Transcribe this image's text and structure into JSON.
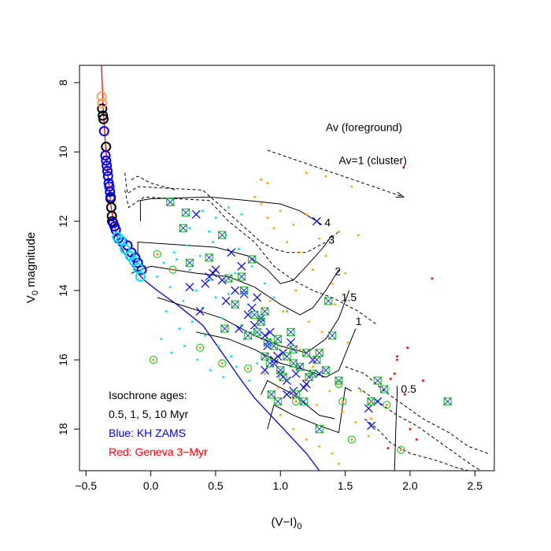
{
  "chart_data": {
    "type": "scatter",
    "xlabel": "(V−I)",
    "xlabel_sub": "0",
    "ylabel": "V",
    "ylabel_sub": "0",
    "ylabel_rest": " magnitude",
    "xlim": [
      -0.55,
      2.65
    ],
    "ylim": [
      19.2,
      7.5
    ],
    "x_ticks": [
      -0.5,
      0.0,
      0.5,
      1.0,
      1.5,
      2.0,
      2.5
    ],
    "x_tick_labels": [
      "−0.5",
      "0.0",
      "0.5",
      "1.0",
      "1.5",
      "2.0",
      "2.5"
    ],
    "y_ticks": [
      8,
      10,
      12,
      14,
      16,
      18
    ],
    "y_tick_labels": [
      "8",
      "10",
      "12",
      "14",
      "16",
      "18"
    ],
    "grid": false,
    "legend": {
      "position": "bottom-left",
      "lines": [
        {
          "text": "Isochrone ages:",
          "color": "#000000"
        },
        {
          "text": "0.5, 1, 5, 10 Myr",
          "color": "#000000"
        },
        {
          "text": "Blue: KH ZAMS",
          "color": "#0000ff"
        },
        {
          "text": "Red: Geneva 3−Myr",
          "color": "#ff0000"
        }
      ]
    },
    "annotations": {
      "av_foreground": {
        "text": "Av (foreground)",
        "x": 1.35,
        "y": 9.4
      },
      "av_cluster": {
        "text": "Av=1 (cluster)",
        "x": 1.45,
        "y": 10.35
      },
      "reddening_vector": {
        "x0": 0.9,
        "y0": 9.95,
        "x1": 1.95,
        "y1": 11.3
      }
    },
    "track_labels": [
      {
        "text": "4",
        "x": 1.34,
        "y": 12.15
      },
      {
        "text": "3",
        "x": 1.37,
        "y": 12.65
      },
      {
        "text": "2",
        "x": 1.42,
        "y": 13.55
      },
      {
        "text": "1.5",
        "x": 1.47,
        "y": 14.3
      },
      {
        "text": "1",
        "x": 1.58,
        "y": 15.0
      },
      {
        "text": "0.5",
        "x": 1.93,
        "y": 16.95
      }
    ],
    "series": [
      {
        "kind": "geneva_line",
        "color": "#ff0000",
        "x": [
          -0.38,
          -0.37,
          -0.355,
          -0.34,
          -0.325,
          -0.315,
          -0.305,
          -0.295,
          -0.285,
          -0.27,
          -0.25
        ],
        "y": [
          7.5,
          8.5,
          9.5,
          10.3,
          10.9,
          11.3,
          11.6,
          11.85,
          12.05,
          12.3,
          12.6
        ]
      },
      {
        "kind": "zams_line",
        "color": "#0000ff",
        "x": [
          -0.25,
          -0.2,
          -0.15,
          -0.1,
          -0.05,
          0.05,
          0.2,
          0.4,
          0.55,
          0.7,
          0.8,
          0.9,
          1.0,
          1.1,
          1.2,
          1.3
        ],
        "y": [
          12.6,
          12.95,
          13.25,
          13.5,
          13.7,
          14.0,
          14.4,
          15.0,
          15.8,
          16.6,
          17.1,
          17.5,
          17.9,
          18.3,
          18.7,
          19.2
        ]
      },
      {
        "kind": "isochrone_solid",
        "color": "#000000",
        "lines": [
          {
            "x": [
              -0.08,
              -0.08,
              0.0,
              0.45,
              0.75,
              1.0,
              1.15,
              1.28,
              1.32
            ],
            "y": [
              12.0,
              11.4,
              11.35,
              11.3,
              11.4,
              11.5,
              11.7,
              12.0,
              12.1
            ]
          },
          {
            "x": [
              -0.1,
              -0.1,
              0.5,
              0.75,
              0.9,
              1.0,
              1.1,
              1.2,
              1.32,
              1.4
            ],
            "y": [
              13.0,
              12.6,
              12.75,
              13.0,
              13.4,
              13.8,
              13.7,
              13.3,
              12.8,
              12.4
            ]
          },
          {
            "x": [
              -0.15,
              0.0,
              0.35,
              0.6,
              0.8,
              1.0,
              1.15,
              1.25,
              1.35,
              1.45
            ],
            "y": [
              13.5,
              13.3,
              13.5,
              13.6,
              13.9,
              14.4,
              14.7,
              14.5,
              14.0,
              13.4
            ]
          },
          {
            "x": [
              0.05,
              0.3,
              0.55,
              0.8,
              1.0,
              1.2,
              1.35,
              1.45,
              1.53
            ],
            "y": [
              14.2,
              14.5,
              14.8,
              15.3,
              15.6,
              15.8,
              15.4,
              14.8,
              14.0
            ]
          },
          {
            "x": [
              0.35,
              0.6,
              0.8,
              1.0,
              1.2,
              1.35,
              1.45,
              1.58
            ],
            "y": [
              15.2,
              15.4,
              15.7,
              16.1,
              16.3,
              16.5,
              16.3,
              15.1
            ]
          },
          {
            "x": [
              0.9,
              0.95,
              1.1,
              1.3,
              1.45,
              1.5,
              1.55
            ],
            "y": [
              18.0,
              17.3,
              17.6,
              17.9,
              18.1,
              16.8,
              16.9
            ]
          },
          {
            "x": [
              0.85,
              0.9,
              1.1,
              1.3,
              1.42
            ],
            "y": [
              17.0,
              16.6,
              17.0,
              17.6,
              17.7
            ]
          },
          {
            "x": [
              1.88,
              1.89,
              1.9,
              1.9
            ],
            "y": [
              19.2,
              18.0,
              17.0,
              16.75
            ]
          }
        ]
      },
      {
        "kind": "isochrone_dashed",
        "color": "#000000",
        "lines": [
          {
            "x": [
              -0.2,
              -0.18,
              -0.1,
              0.4,
              0.55,
              0.7,
              0.85,
              0.95,
              1.05,
              1.2,
              1.35,
              1.45
            ],
            "y": [
              10.6,
              11.2,
              11.0,
              11.1,
              11.6,
              12.1,
              12.6,
              12.8,
              12.9,
              12.9,
              12.6,
              12.3
            ]
          },
          {
            "x": [
              -0.2,
              -0.17,
              -0.05,
              0.45,
              0.6,
              0.8,
              0.95,
              1.1,
              1.25,
              1.4,
              1.6,
              1.75
            ],
            "y": [
              11.1,
              11.6,
              11.3,
              11.4,
              12.0,
              12.6,
              13.3,
              13.7,
              14.0,
              14.2,
              14.6,
              15.0
            ]
          },
          {
            "x": [
              1.5,
              1.65,
              1.8,
              1.95,
              2.1,
              2.3,
              2.45,
              2.6
            ],
            "y": [
              16.2,
              16.4,
              16.9,
              17.3,
              17.7,
              18.1,
              18.5,
              18.7
            ]
          },
          {
            "x": [
              1.6,
              1.75,
              1.9,
              2.05,
              2.2,
              2.35,
              2.5,
              2.55
            ],
            "y": [
              16.8,
              17.2,
              17.6,
              17.9,
              18.3,
              18.7,
              19.1,
              19.2
            ]
          },
          {
            "x": [
              1.65,
              1.75,
              1.85,
              2.0,
              2.2,
              2.35,
              2.45
            ],
            "y": [
              17.7,
              18.0,
              18.4,
              18.7,
              18.9,
              19.1,
              19.2
            ]
          },
          {
            "x": [
              -0.15,
              -0.1,
              0.0,
              0.1,
              0.2
            ],
            "y": [
              10.8,
              10.7,
              10.9,
              11.0,
              11.1
            ]
          }
        ]
      },
      {
        "kind": "bright_circles_black",
        "color": "#000000",
        "x": [
          -0.375,
          -0.37,
          -0.365,
          -0.345,
          -0.31,
          -0.305,
          -0.3,
          -0.298
        ],
        "y": [
          8.75,
          8.95,
          9.05,
          9.85,
          11.35,
          11.6,
          11.85,
          12.0
        ]
      },
      {
        "kind": "bright_circles_orange",
        "color": "#f4a460",
        "x": [
          -0.38,
          -0.375
        ],
        "y": [
          8.4,
          8.6
        ]
      },
      {
        "kind": "bright_circles_blue",
        "color": "#0000ff",
        "x": [
          -0.36,
          -0.35,
          -0.345,
          -0.34,
          -0.335,
          -0.33,
          -0.325,
          -0.32,
          -0.315,
          -0.31,
          -0.29,
          -0.28,
          -0.27,
          -0.25,
          -0.22,
          -0.18,
          -0.15,
          -0.12,
          -0.1,
          -0.07
        ],
        "y": [
          9.4,
          10.1,
          10.25,
          10.4,
          10.55,
          10.7,
          10.9,
          11.0,
          11.15,
          11.3,
          12.05,
          12.15,
          12.25,
          12.5,
          12.6,
          12.7,
          12.9,
          13.05,
          13.2,
          13.4
        ]
      },
      {
        "kind": "bright_circles_cyan",
        "color": "#00e5ee",
        "x": [
          -0.26,
          -0.23,
          -0.2,
          -0.16,
          -0.13,
          -0.1,
          -0.08
        ],
        "y": [
          12.45,
          12.55,
          12.8,
          13.0,
          13.15,
          13.35,
          13.6
        ]
      },
      {
        "kind": "cyan_dots",
        "color": "#00e5ee",
        "x": [
          0.05,
          0.1,
          0.15,
          0.2,
          0.25,
          0.3,
          0.35,
          0.4,
          0.45,
          0.5,
          0.55,
          0.6,
          0.65,
          0.7,
          0.75,
          0.8,
          0.85,
          0.9,
          0.12,
          0.22,
          0.32,
          0.42,
          0.52,
          0.62,
          0.72,
          0.82,
          0.18,
          0.28,
          0.38,
          0.48,
          0.58,
          0.68,
          0.78,
          0.88,
          0.95,
          1.05,
          0.08,
          0.16,
          0.26,
          0.36,
          0.46,
          0.56,
          0.66,
          0.76,
          0.4,
          0.5,
          0.6,
          0.7,
          0.3,
          0.45
        ],
        "y": [
          13.6,
          13.2,
          13.9,
          13.1,
          14.3,
          13.4,
          14.0,
          14.5,
          13.7,
          14.2,
          14.8,
          14.1,
          13.5,
          15.0,
          14.4,
          15.2,
          14.7,
          15.5,
          14.6,
          15.1,
          14.9,
          15.3,
          15.6,
          15.9,
          15.4,
          16.1,
          12.9,
          12.7,
          13.0,
          12.6,
          12.4,
          12.8,
          13.3,
          13.8,
          14.2,
          14.6,
          15.4,
          15.8,
          15.6,
          16.0,
          16.3,
          16.5,
          16.2,
          16.6,
          11.7,
          11.9,
          11.6,
          11.8,
          12.2,
          12.3
        ]
      },
      {
        "kind": "orange_dots",
        "color": "#ffa500",
        "x": [
          0.85,
          0.9,
          0.95,
          1.0,
          1.05,
          1.1,
          1.15,
          1.2,
          1.25,
          1.3,
          1.35,
          1.4,
          1.45,
          1.5,
          1.55,
          1.6,
          0.92,
          1.02,
          1.12,
          1.22,
          1.32,
          1.42,
          1.52,
          0.88,
          0.98,
          1.08,
          1.18,
          1.28,
          1.38,
          1.48,
          1.58,
          1.68,
          1.0,
          1.1,
          1.2,
          1.3,
          1.4,
          1.45,
          0.95,
          1.05,
          1.15,
          1.25,
          0.9,
          0.8,
          0.85,
          1.35,
          1.55,
          1.62,
          1.7,
          1.2
        ],
        "y": [
          11.5,
          11.9,
          12.2,
          11.7,
          12.6,
          12.1,
          12.9,
          11.8,
          13.4,
          12.5,
          13.0,
          13.8,
          12.3,
          13.5,
          14.1,
          12.4,
          14.3,
          14.6,
          14.0,
          14.9,
          15.2,
          14.4,
          15.5,
          16.4,
          16.8,
          17.1,
          16.6,
          17.3,
          16.9,
          17.5,
          17.8,
          18.2,
          17.6,
          18.0,
          18.3,
          18.5,
          18.7,
          19.0,
          15.8,
          16.0,
          15.7,
          16.2,
          10.9,
          11.3,
          10.8,
          10.7,
          11.0,
          16.9,
          17.7,
          10.6
        ]
      },
      {
        "kind": "red_dots",
        "color": "#ff0000",
        "x": [
          1.95,
          2.17,
          1.9,
          1.98,
          1.85,
          2.1,
          1.88,
          2.0,
          2.05,
          1.83,
          1.96,
          1.9
        ],
        "y": [
          10.45,
          13.65,
          15.9,
          15.65,
          16.55,
          16.6,
          16.4,
          18.0,
          18.3,
          18.55,
          17.0,
          16.0
        ]
      },
      {
        "kind": "blue_crosses",
        "color": "#0000ff",
        "x": [
          0.35,
          0.45,
          0.55,
          0.62,
          0.7,
          0.72,
          0.78,
          0.8,
          0.85,
          0.9,
          0.92,
          0.95,
          1.0,
          1.02,
          1.05,
          1.08,
          1.1,
          1.15,
          1.2,
          1.25,
          0.42,
          0.48,
          0.58,
          0.65,
          0.75,
          0.82,
          0.88,
          0.98,
          1.12,
          1.18,
          0.3,
          0.38,
          0.5,
          0.68,
          1.28,
          1.3,
          1.68,
          1.7,
          1.75,
          0.88,
          0.95,
          1.05
        ],
        "y": [
          11.8,
          13.6,
          13.7,
          12.9,
          13.3,
          14.1,
          14.5,
          15.0,
          14.8,
          15.6,
          15.2,
          16.1,
          16.4,
          15.8,
          16.6,
          15.5,
          16.9,
          16.2,
          16.7,
          16.0,
          13.8,
          13.5,
          14.3,
          14.0,
          14.7,
          14.2,
          15.3,
          15.9,
          16.4,
          16.8,
          13.9,
          14.6,
          13.4,
          15.1,
          12.0,
          16.4,
          17.4,
          17.9,
          17.2,
          16.3,
          16.0,
          17.0
        ]
      },
      {
        "kind": "green_marked",
        "color": "#32cd32",
        "x": [
          0.15,
          0.25,
          0.27,
          0.3,
          0.45,
          0.55,
          0.6,
          0.65,
          0.75,
          0.78,
          0.8,
          0.85,
          0.9,
          0.95,
          1.0,
          1.05,
          1.1,
          1.15,
          1.2,
          1.25,
          1.3,
          1.35,
          1.4,
          1.45,
          0.72,
          0.82,
          0.88,
          0.92,
          0.98,
          1.02,
          1.08,
          1.12,
          1.7,
          1.75,
          1.8,
          1.3,
          2.29,
          1.37,
          0.93,
          1.28,
          0.57,
          0.7,
          0.88,
          1.1,
          0.98,
          1.22,
          1.18
        ],
        "y": [
          11.45,
          12.2,
          11.75,
          13.2,
          13.05,
          12.4,
          13.65,
          14.4,
          15.3,
          13.1,
          14.7,
          14.9,
          15.5,
          15.6,
          16.3,
          15.9,
          15.7,
          16.2,
          15.8,
          16.4,
          15.8,
          16.3,
          15.3,
          16.6,
          14.0,
          15.2,
          15.9,
          16.1,
          15.4,
          16.5,
          15.2,
          17.0,
          17.2,
          16.6,
          16.85,
          18.0,
          17.2,
          14.3,
          17.0,
          16.0,
          15.1,
          13.6,
          14.6,
          16.1,
          17.2,
          16.5,
          17.2
        ]
      },
      {
        "kind": "green_circles",
        "color": "#32cd32",
        "x": [
          0.05,
          0.17,
          0.38,
          0.55,
          0.75,
          1.12,
          1.45,
          1.7,
          1.82,
          1.55,
          1.48,
          1.93,
          0.02
        ],
        "y": [
          12.95,
          13.4,
          15.65,
          16.1,
          16.25,
          17.2,
          16.7,
          17.2,
          17.3,
          18.3,
          17.2,
          18.6,
          16.0
        ]
      }
    ]
  }
}
